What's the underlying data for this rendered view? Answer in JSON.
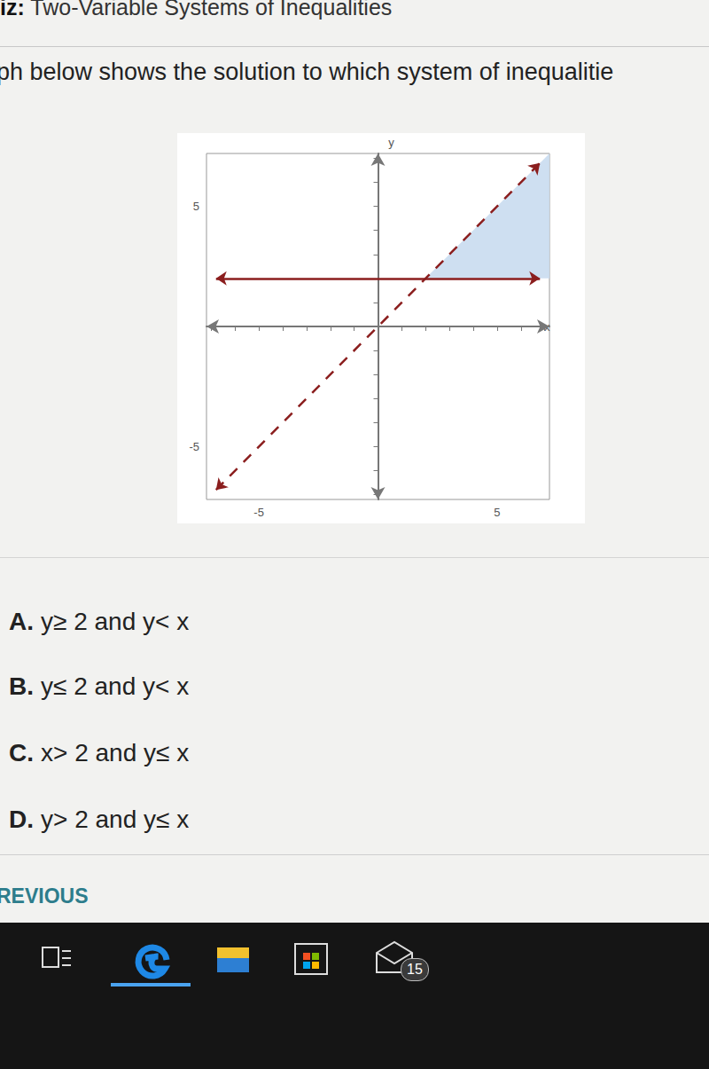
{
  "header": {
    "quiz_label": "iz:",
    "title": "Two-Variable Systems of Inequalities"
  },
  "question": "ph below shows the solution to which system of inequalitie",
  "chart_data": {
    "type": "inequality_graph",
    "x_label": "x",
    "y_label": "y",
    "xlim": [
      -7.2,
      7.2
    ],
    "ylim": [
      -7.2,
      7.2
    ],
    "xticks": [
      -5,
      5
    ],
    "yticks": [
      -5,
      5
    ],
    "lines": [
      {
        "x": [
          -6.8,
          6.8
        ],
        "y": [
          2,
          2
        ],
        "line_style": "solid",
        "color": "#8b1e1e"
      },
      {
        "x": [
          -6.8,
          6.8
        ],
        "y": [
          -6.8,
          6.8
        ],
        "line_style": "dashed",
        "color": "#8b1e1e"
      }
    ],
    "shaded_region": {
      "x": [
        2,
        7.2,
        7.2
      ],
      "y": [
        2,
        2,
        7.2
      ],
      "color": "#c9dcf0"
    }
  },
  "options": [
    {
      "letter": "A.",
      "text": "y≥ 2 and y< x"
    },
    {
      "letter": "B.",
      "text": "y≤ 2 and y< x"
    },
    {
      "letter": "C.",
      "text": "x> 2 and y≤ x"
    },
    {
      "letter": "D.",
      "text": "y> 2 and y≤ x"
    }
  ],
  "nav": "REVIOUS",
  "taskbar": {
    "badge": "15"
  }
}
